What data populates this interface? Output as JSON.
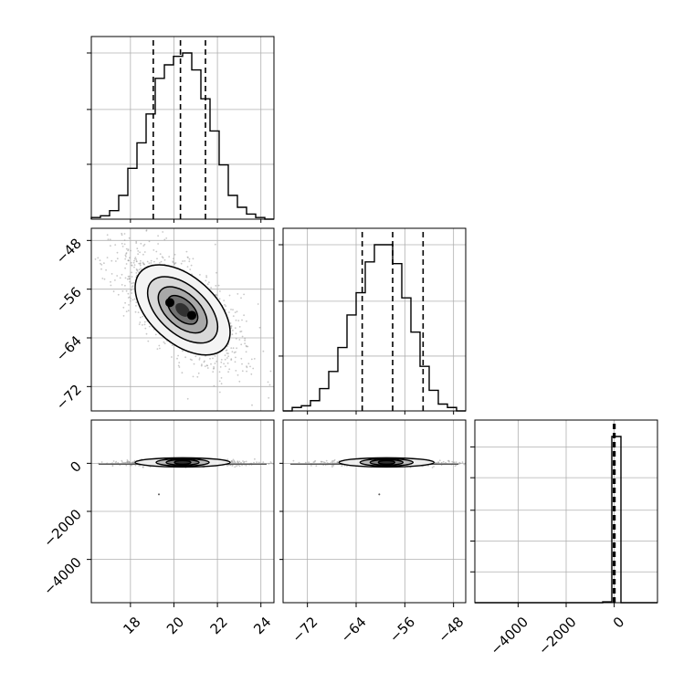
{
  "chart_data": {
    "type": "corner",
    "parameters": 3,
    "title": "",
    "grid": true,
    "axes": {
      "p0": {
        "range": [
          16.2,
          24.6
        ],
        "ticks": [
          18,
          20,
          22,
          24
        ],
        "tick_labels": [
          "18",
          "20",
          "22",
          "24"
        ]
      },
      "p1": {
        "range": [
          -76,
          -46
        ],
        "ticks": [
          -72,
          -64,
          -56,
          -48
        ],
        "tick_labels": [
          "−72",
          "−64",
          "−56",
          "−48"
        ]
      },
      "p2": {
        "range": [
          -5800,
          1800
        ],
        "ticks": [
          -4000,
          -2000,
          0
        ],
        "tick_labels": [
          "−4000",
          "−2000",
          "0"
        ]
      }
    },
    "histograms": [
      {
        "param": "p0",
        "bin_edges": [
          16.2,
          16.62,
          17.04,
          17.46,
          17.88,
          18.3,
          18.72,
          19.14,
          19.56,
          19.98,
          20.4,
          20.82,
          21.24,
          21.66,
          22.08,
          22.5,
          22.92,
          23.34,
          23.76,
          24.18,
          24.6
        ],
        "counts": [
          1,
          2,
          5,
          14,
          30,
          45,
          62,
          83,
          91,
          96,
          98,
          88,
          71,
          52,
          32,
          14,
          7,
          3,
          1,
          0
        ],
        "quantiles": [
          19.05,
          20.3,
          21.45
        ]
      },
      {
        "param": "p1",
        "bin_edges": [
          -76,
          -74.5,
          -73,
          -71.5,
          -70,
          -68.5,
          -67,
          -65.5,
          -64,
          -62.5,
          -61,
          -59.5,
          -58,
          -56.5,
          -55,
          -53.5,
          -52,
          -50.5,
          -49,
          -47.5,
          -46
        ],
        "counts": [
          0,
          2,
          3,
          6,
          13,
          23,
          37,
          56,
          69,
          87,
          97,
          97,
          86,
          66,
          46,
          26,
          12,
          4,
          2,
          0
        ],
        "quantiles": [
          -63,
          -58,
          -53
        ]
      },
      {
        "param": "p2",
        "bin_edges": [
          -5800,
          -5420,
          -5040,
          -4660,
          -4280,
          -3900,
          -3520,
          -3140,
          -2760,
          -2380,
          -2000,
          -1620,
          -1240,
          -860,
          -480,
          -100,
          280,
          660,
          1040,
          1420,
          1800
        ],
        "counts": [
          0,
          0,
          0,
          0,
          0,
          0,
          0,
          0,
          0,
          0,
          0,
          0,
          0,
          0,
          0.5,
          100,
          0,
          0,
          0,
          0
        ],
        "quantiles": [
          -30,
          0,
          30
        ]
      }
    ],
    "pairs": [
      {
        "x": "p0",
        "y": "p1",
        "center": [
          20.4,
          -59.4
        ],
        "correlation": "negative"
      },
      {
        "x": "p0",
        "y": "p2",
        "center": [
          20.4,
          0
        ]
      },
      {
        "x": "p1",
        "y": "p2",
        "center": [
          -59,
          0
        ]
      }
    ],
    "colors": {
      "line": "#000000",
      "grid": "#b0b0b0",
      "points": "#9a9a9a"
    }
  }
}
